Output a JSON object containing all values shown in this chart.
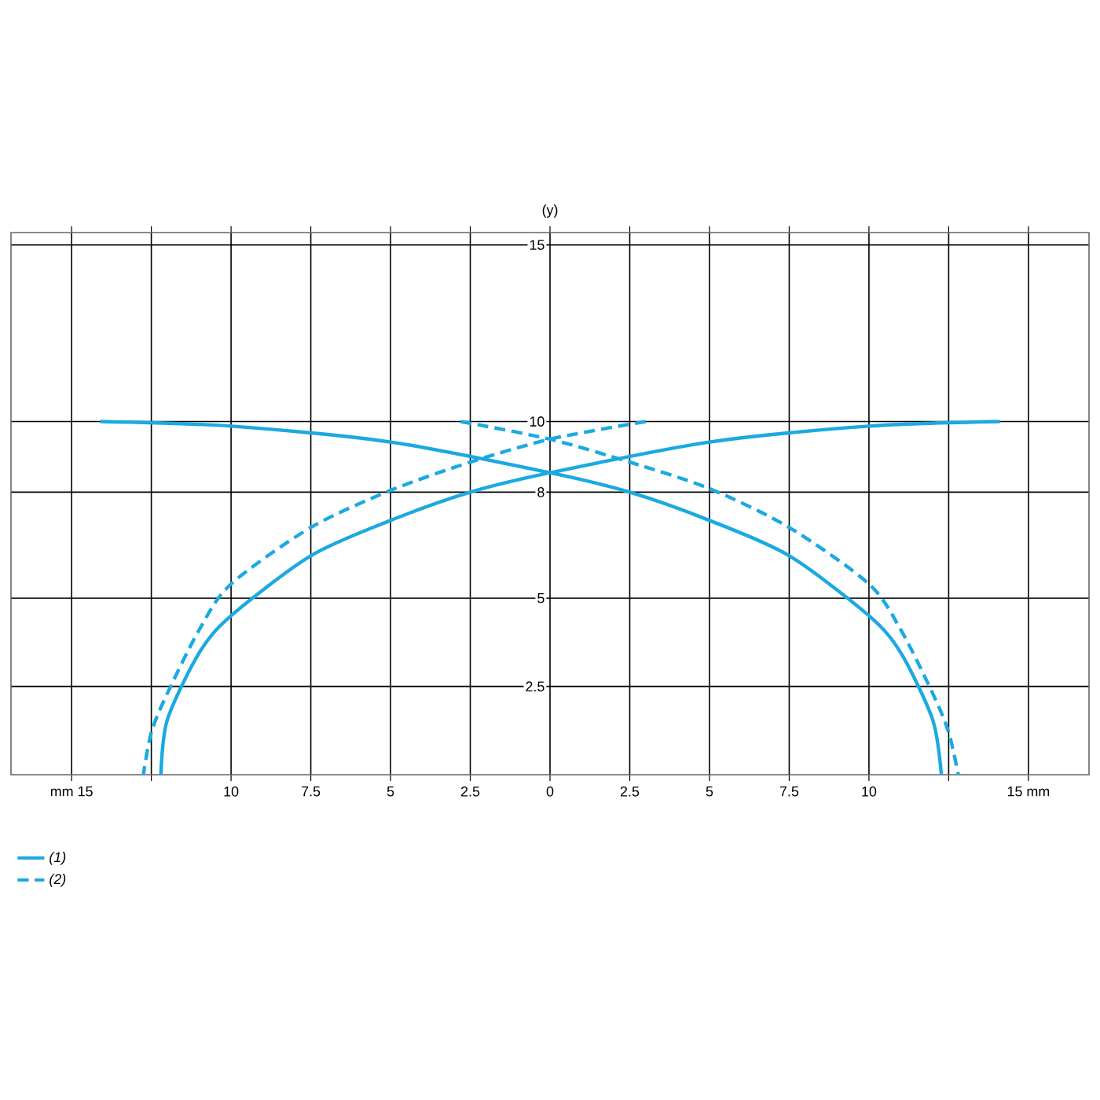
{
  "chart_data": {
    "type": "line",
    "ylabel": "(y)",
    "xlim": [
      -16.9,
      16.9
    ],
    "ylim": [
      0,
      15.35
    ],
    "xticks": [
      {
        "value": -15,
        "label": "mm 15"
      },
      {
        "value": -12.5,
        "label": null
      },
      {
        "value": -10,
        "label": "10"
      },
      {
        "value": -7.5,
        "label": "7.5"
      },
      {
        "value": -5,
        "label": "5"
      },
      {
        "value": -2.5,
        "label": "2.5"
      },
      0,
      2.5,
      5,
      7.5,
      10,
      {
        "value": 12.5,
        "label": null
      },
      {
        "value": 15,
        "label": "15 mm"
      }
    ],
    "yticks": [
      2.5,
      5,
      8,
      10,
      15
    ],
    "grid": true,
    "legend": "bottom left",
    "marker": "none",
    "series": [
      {
        "name": "(1)",
        "color": "#1ba9e1",
        "line_style": "solid",
        "x": [
          -14.1,
          -10,
          -5,
          0,
          2.5,
          5,
          7.5,
          10,
          11,
          12,
          12.27,
          null,
          14.1,
          10,
          5,
          0,
          -2.5,
          -5,
          -7.5,
          -10,
          -11,
          -12,
          -12.2
        ],
        "values": [
          10,
          9.87,
          9.42,
          8.55,
          8.0,
          7.2,
          6.2,
          4.5,
          3.45,
          1.55,
          0,
          null,
          10,
          9.87,
          9.42,
          8.55,
          8.0,
          7.2,
          6.2,
          4.5,
          3.45,
          1.55,
          0
        ]
      },
      {
        "name": "(2)",
        "color": "#1ba9e1",
        "line_style": "dashed",
        "x": [
          -2.8,
          0,
          2.5,
          5,
          7.5,
          10,
          11,
          12,
          12.5,
          12.8,
          null,
          3.0,
          0,
          -2.5,
          -5,
          -7.5,
          -10,
          -11,
          -12,
          -12.5,
          -12.75
        ],
        "values": [
          10,
          9.5,
          8.85,
          8.1,
          7.0,
          5.4,
          4.1,
          2.3,
          1.2,
          0,
          null,
          10,
          9.5,
          8.85,
          8.05,
          7.0,
          5.4,
          4.1,
          2.3,
          1.2,
          0
        ]
      }
    ]
  }
}
